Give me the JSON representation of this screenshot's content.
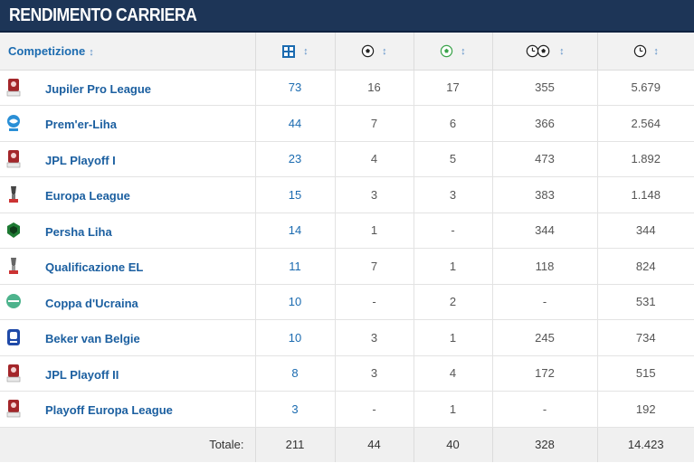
{
  "panel": {
    "title": "RENDIMENTO CARRIERA"
  },
  "header": {
    "competition_label": "Competizione",
    "sort_glyph": "↕",
    "columns": [
      {
        "key": "appearances",
        "icon": "lineup-icon"
      },
      {
        "key": "goals",
        "icon": "ball-icon"
      },
      {
        "key": "assists",
        "icon": "assist-ball-icon"
      },
      {
        "key": "minutes_per_goal",
        "icon": "clock-ball-icon"
      },
      {
        "key": "minutes",
        "icon": "clock-icon"
      }
    ]
  },
  "rows": [
    {
      "competition": "Jupiler Pro League",
      "logo": "jupiler-pro-league-logo",
      "apps": "73",
      "goals": "16",
      "assists": "17",
      "mpg": "355",
      "minutes": "5.679"
    },
    {
      "competition": "Prem'er-Liha",
      "logo": "premier-liha-logo",
      "apps": "44",
      "goals": "7",
      "assists": "6",
      "mpg": "366",
      "minutes": "2.564"
    },
    {
      "competition": "JPL Playoff I",
      "logo": "jpl-playoff-logo",
      "apps": "23",
      "goals": "4",
      "assists": "5",
      "mpg": "473",
      "minutes": "1.892"
    },
    {
      "competition": "Europa League",
      "logo": "europa-league-logo",
      "apps": "15",
      "goals": "3",
      "assists": "3",
      "mpg": "383",
      "minutes": "1.148"
    },
    {
      "competition": "Persha Liha",
      "logo": "persha-liha-logo",
      "apps": "14",
      "goals": "1",
      "assists": "-",
      "mpg": "344",
      "minutes": "344"
    },
    {
      "competition": "Qualificazione EL",
      "logo": "europa-league-qualifying-logo",
      "apps": "11",
      "goals": "7",
      "assists": "1",
      "mpg": "118",
      "minutes": "824"
    },
    {
      "competition": "Coppa d'Ucraina",
      "logo": "ukrainian-cup-logo",
      "apps": "10",
      "goals": "-",
      "assists": "2",
      "mpg": "-",
      "minutes": "531"
    },
    {
      "competition": "Beker van Belgie",
      "logo": "belgian-cup-logo",
      "apps": "10",
      "goals": "3",
      "assists": "1",
      "mpg": "245",
      "minutes": "734"
    },
    {
      "competition": "JPL Playoff II",
      "logo": "jpl-playoff-logo",
      "apps": "8",
      "goals": "3",
      "assists": "4",
      "mpg": "172",
      "minutes": "515"
    },
    {
      "competition": "Playoff Europa League",
      "logo": "jpl-playoff-logo",
      "apps": "3",
      "goals": "-",
      "assists": "1",
      "mpg": "-",
      "minutes": "192"
    }
  ],
  "totals": {
    "label": "Totale:",
    "apps": "211",
    "goals": "44",
    "assists": "40",
    "mpg": "328",
    "minutes": "14.423"
  },
  "colors": {
    "title_bar": "#1d3557",
    "link_blue": "#1b5fa0",
    "header_bg": "#f2f2f2"
  }
}
